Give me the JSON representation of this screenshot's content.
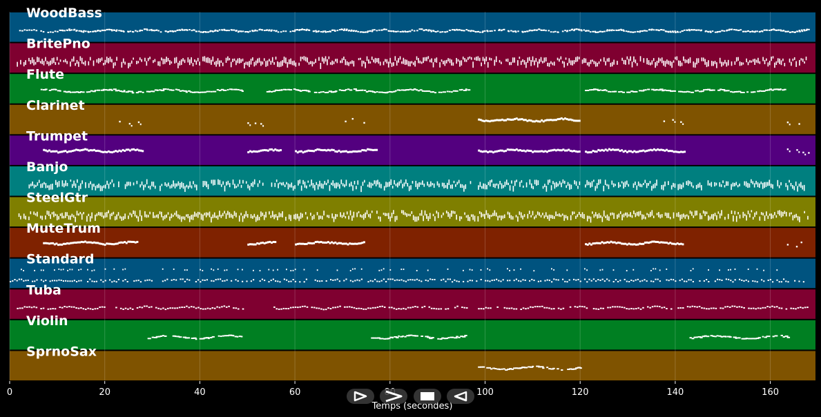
{
  "chart_data": {
    "type": "piano-roll",
    "xlabel": "Temps (secondes)",
    "xlim": [
      0,
      169.5
    ],
    "xticks": [
      0,
      20,
      40,
      60,
      80,
      100,
      120,
      140,
      160
    ],
    "grid": true,
    "tracks": [
      {
        "name": "WoodBass",
        "color": "#00537f",
        "segments": [
          [
            1.5,
            168
          ],
          [
            10,
            168
          ]
        ],
        "style": "dots-low"
      },
      {
        "name": "BritePno",
        "color": "#7f0030",
        "segments": [
          [
            1.5,
            168
          ]
        ],
        "style": "dense"
      },
      {
        "name": "Flute",
        "color": "#007f22",
        "segments": [
          [
            6.5,
            49
          ],
          [
            54,
            96.5
          ],
          [
            121,
            163.5
          ]
        ],
        "style": "melody"
      },
      {
        "name": "Clarinet",
        "color": "#7f5300",
        "segments": [
          [
            23,
            27
          ],
          [
            50,
            53.5
          ],
          [
            70.5,
            74.5
          ],
          [
            98.5,
            120
          ],
          [
            137.5,
            141.5
          ],
          [
            163.5,
            168
          ]
        ],
        "style": "phrases"
      },
      {
        "name": "Trumpet",
        "color": "#53007f",
        "segments": [
          [
            7,
            28
          ],
          [
            50,
            57
          ],
          [
            60,
            77
          ],
          [
            98.5,
            120
          ],
          [
            121,
            142
          ],
          [
            163.5,
            168
          ]
        ],
        "style": "phrases"
      },
      {
        "name": "Banjo",
        "color": "#007f7f",
        "segments": [
          [
            4,
            53.5
          ],
          [
            55,
            97
          ],
          [
            98.5,
            120
          ],
          [
            121,
            168
          ]
        ],
        "style": "dense"
      },
      {
        "name": "SteelGtr",
        "color": "#7f7f00",
        "segments": [
          [
            1.5,
            168
          ]
        ],
        "style": "dense"
      },
      {
        "name": "MuteTrum",
        "color": "#7f2200",
        "segments": [
          [
            7,
            27
          ],
          [
            50,
            56
          ],
          [
            60,
            74.5
          ],
          [
            121,
            141.5
          ],
          [
            163.5,
            168
          ]
        ],
        "style": "phrases"
      },
      {
        "name": "Standard",
        "color": "#00537f",
        "segments": [
          [
            0,
            167
          ]
        ],
        "style": "drums"
      },
      {
        "name": "Tuba",
        "color": "#7f0030",
        "segments": [
          [
            1.5,
            49
          ],
          [
            55,
            96
          ],
          [
            98.5,
            168
          ]
        ],
        "style": "dots-low"
      },
      {
        "name": "Violin",
        "color": "#007f22",
        "segments": [
          [
            29,
            49
          ],
          [
            76,
            96
          ],
          [
            143,
            163.5
          ]
        ],
        "style": "melody"
      },
      {
        "name": "SprnoSax",
        "color": "#7f5300",
        "segments": [
          [
            98.5,
            120
          ]
        ],
        "style": "melody"
      }
    ]
  },
  "controls": [
    {
      "name": "play-selection-button",
      "icon": "play-outline-icon"
    },
    {
      "name": "play-button",
      "icon": "play-wide-icon"
    },
    {
      "name": "stop-button",
      "icon": "stop-icon"
    },
    {
      "name": "rewind-button",
      "icon": "rewind-icon"
    }
  ]
}
